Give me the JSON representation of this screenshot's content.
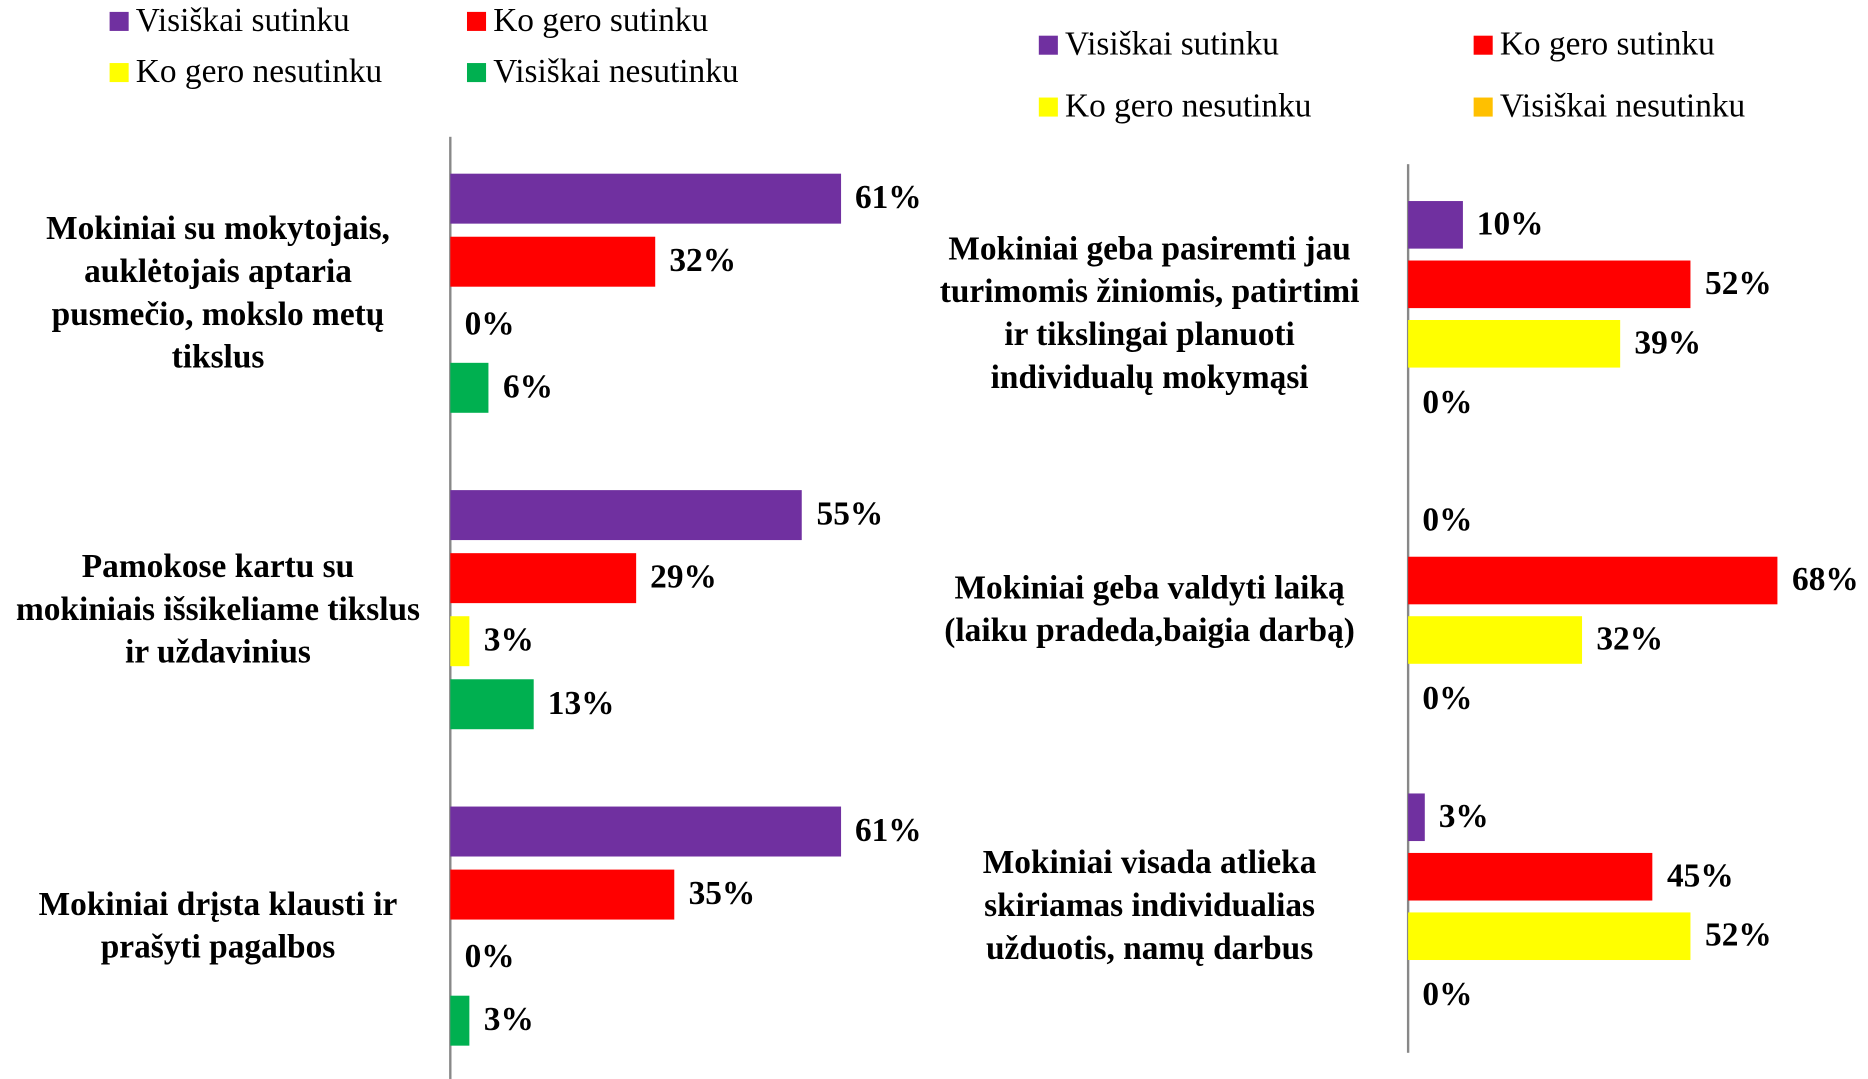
{
  "chart_data": [
    {
      "type": "bar",
      "orientation": "horizontal",
      "categories": [
        "Mokiniai su mokytojais, auklėtojais aptaria pusmečio, mokslo metų tikslus",
        "Pamokose kartu su mokiniais išsikeliame tikslus ir uždavinius",
        "Mokiniai drįsta klausti ir prašyti pagalbos"
      ],
      "series": [
        {
          "name": "Visiškai sutinku",
          "color": "#7030a0",
          "values": [
            61,
            55,
            61
          ],
          "value_labels": [
            "61%",
            "55%",
            "61%"
          ]
        },
        {
          "name": "Ko gero sutinku",
          "color": "#ff0000",
          "values": [
            32,
            29,
            35
          ],
          "value_labels": [
            "32%",
            "29%",
            "35%"
          ]
        },
        {
          "name": "Ko gero nesutinku",
          "color": "#ffff00",
          "values": [
            0,
            3,
            0
          ],
          "value_labels": [
            "0%",
            "3%",
            "0%"
          ]
        },
        {
          "name": "Visiškai nesutinku",
          "color": "#00b050",
          "values": [
            6,
            13,
            3
          ],
          "value_labels": [
            "6%",
            "13%",
            "3%"
          ]
        }
      ],
      "xlim": [
        0,
        70
      ]
    },
    {
      "type": "bar",
      "orientation": "horizontal",
      "categories": [
        "Mokiniai geba pasiremti jau turimomis žiniomis, patirtimi ir tikslingai planuoti individualų mokymąsi",
        "Mokiniai geba valdyti laiką (laiku pradeda,baigia darbą)",
        "Mokiniai visada atlieka skiriamas individualias užduotis, namų darbus"
      ],
      "series": [
        {
          "name": "Visiškai sutinku",
          "color": "#7030a0",
          "values": [
            10,
            0,
            3
          ],
          "value_labels": [
            "10%",
            "0%",
            "3%"
          ]
        },
        {
          "name": "Ko gero sutinku",
          "color": "#ff0000",
          "values": [
            52,
            68,
            45
          ],
          "value_labels": [
            "52%",
            "68%",
            "45%"
          ]
        },
        {
          "name": "Ko gero nesutinku",
          "color": "#ffff00",
          "values": [
            39,
            32,
            52
          ],
          "value_labels": [
            "39%",
            "32%",
            "52%"
          ]
        },
        {
          "name": "Visiškai nesutinku",
          "color": "#ffc000",
          "values": [
            0,
            0,
            0
          ],
          "value_labels": [
            "0%",
            "0%",
            "0%"
          ]
        }
      ],
      "xlim": [
        0,
        80
      ]
    }
  ]
}
